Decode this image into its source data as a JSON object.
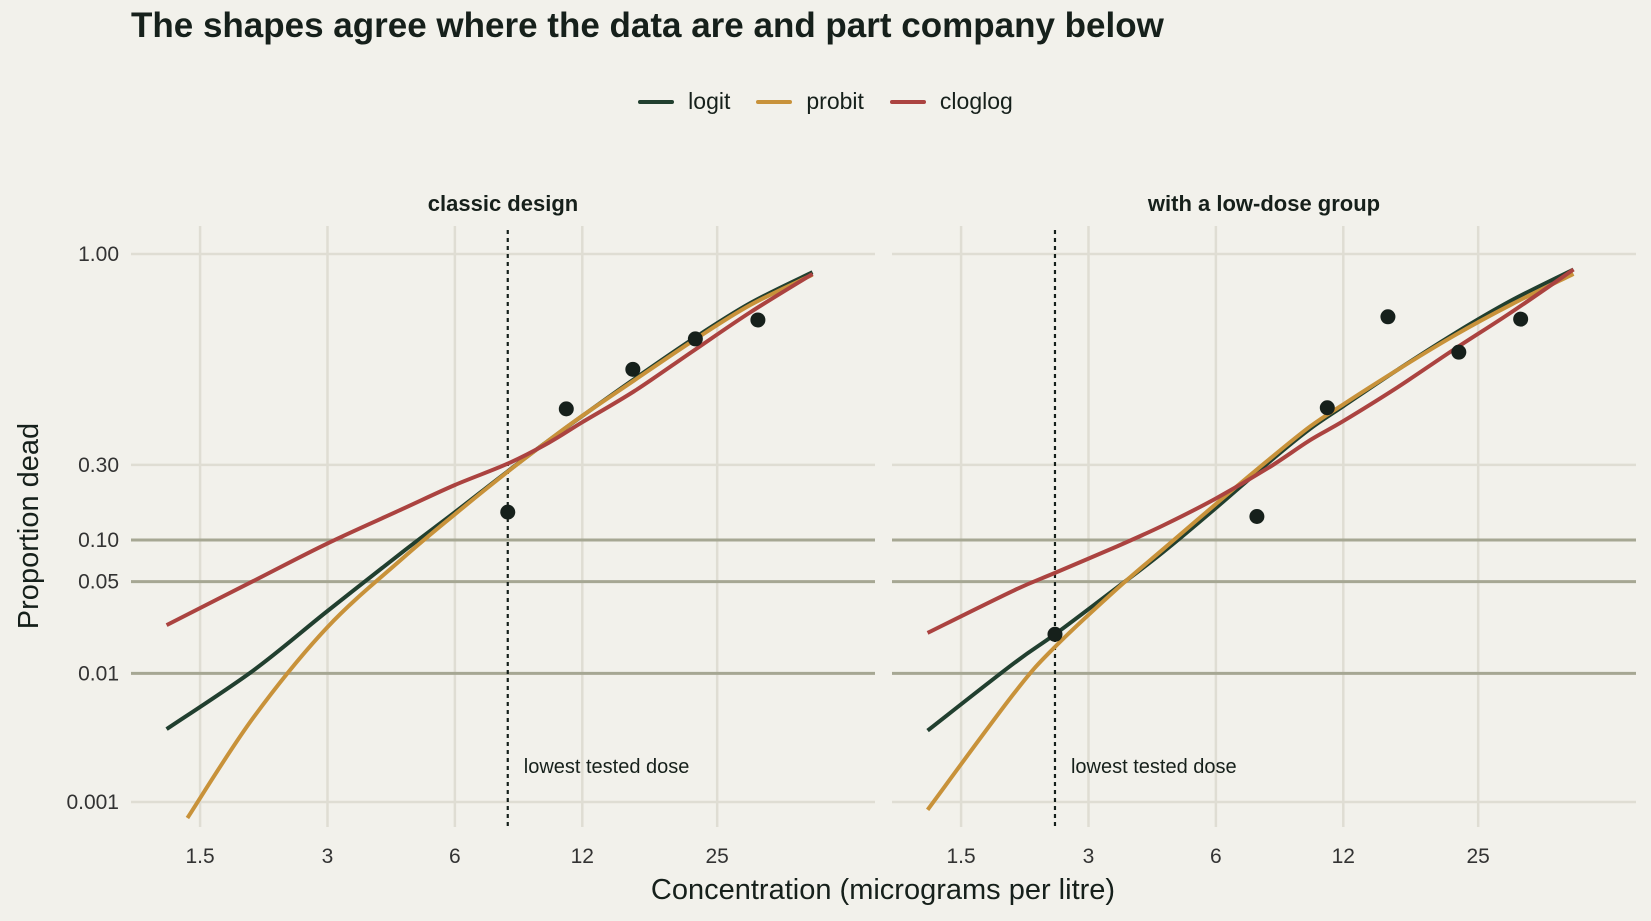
{
  "chart_data": {
    "type": "line",
    "title": "The shapes agree where the data are and part company below",
    "xlabel": "Concentration (micrograms per litre)",
    "ylabel": "Proportion dead",
    "x_scale": "log",
    "y_scale": "logit",
    "x_ticks": [
      1.5,
      3,
      6,
      12,
      25
    ],
    "x_tick_labels": [
      "1.5",
      "3",
      "6",
      "12",
      "25"
    ],
    "y_ticks": [
      0.001,
      0.01,
      0.05,
      0.1,
      0.3,
      1.0
    ],
    "y_tick_labels": [
      "0.001",
      "0.01",
      "0.05",
      "0.10",
      "0.30",
      "1.00"
    ],
    "highlight_y": [
      0.01,
      0.05,
      0.1
    ],
    "xlim": [
      1.03,
      59
    ],
    "legend_position": "top",
    "legend": [
      {
        "name": "logit",
        "color": "#213f2f"
      },
      {
        "name": "probit",
        "color": "#c8923a"
      },
      {
        "name": "cloglog",
        "color": "#ab4340"
      }
    ],
    "panels": [
      {
        "title": "classic design",
        "points": [
          {
            "x": 8.0,
            "y": 0.155
          },
          {
            "x": 11.0,
            "y": 0.54
          },
          {
            "x": 15.8,
            "y": 0.705
          },
          {
            "x": 22.2,
            "y": 0.805
          },
          {
            "x": 31.2,
            "y": 0.853
          }
        ],
        "lowest_dose": 8.0,
        "annotation": "lowest tested dose",
        "series": [
          {
            "name": "logit",
            "x": [
              1.25,
              2,
              3,
              4.5,
              6,
              8,
              10,
              12,
              16,
              22,
              30,
              42
            ],
            "y": [
              0.0037,
              0.0105,
              0.0301,
              0.0817,
              0.1549,
              0.2766,
              0.4,
              0.5086,
              0.67,
              0.8065,
              0.8875,
              0.932
            ]
          },
          {
            "name": "probit",
            "x": [
              1.4,
              2,
              3,
              4.5,
              6,
              8,
              10,
              12,
              16,
              22,
              30,
              42
            ],
            "y": [
              0.00075,
              0.0045,
              0.0227,
              0.0733,
              0.15,
              0.275,
              0.4,
              0.509,
              0.665,
              0.801,
              0.884,
              0.929
            ]
          },
          {
            "name": "cloglog",
            "x": [
              1.25,
              2,
              3,
              4.5,
              6,
              8,
              10,
              12,
              16,
              22,
              30,
              42
            ],
            "y": [
              0.0235,
              0.0503,
              0.0946,
              0.162,
              0.23,
              0.305,
              0.39,
              0.48,
              0.62,
              0.77,
              0.87,
              0.93
            ]
          }
        ]
      },
      {
        "title": "with a low-dose group",
        "points": [
          {
            "x": 2.5,
            "y": 0.02
          },
          {
            "x": 7.5,
            "y": 0.145
          },
          {
            "x": 11.0,
            "y": 0.545
          },
          {
            "x": 15.3,
            "y": 0.86
          },
          {
            "x": 22.5,
            "y": 0.765
          },
          {
            "x": 31.5,
            "y": 0.855
          }
        ],
        "lowest_dose": 2.5,
        "annotation": "lowest tested dose",
        "series": [
          {
            "name": "logit",
            "x": [
              1.25,
              2,
              2.5,
              3.5,
              4.5,
              6,
              8,
              10,
              12,
              16,
              22,
              30,
              42
            ],
            "y": [
              0.0036,
              0.012,
              0.02,
              0.045,
              0.082,
              0.165,
              0.31,
              0.45,
              0.552,
              0.7,
              0.82,
              0.892,
              0.935
            ]
          },
          {
            "name": "probit",
            "x": [
              1.25,
              2,
              2.5,
              3.5,
              4.5,
              6,
              8,
              10,
              12,
              16,
              22,
              30,
              42
            ],
            "y": [
              0.00087,
              0.007,
              0.016,
              0.044,
              0.086,
              0.175,
              0.32,
              0.46,
              0.56,
              0.7,
              0.815,
              0.885,
              0.93
            ]
          },
          {
            "name": "cloglog",
            "x": [
              1.25,
              2,
              2.5,
              3.5,
              4.5,
              6,
              8,
              10,
              12,
              16,
              22,
              30,
              42
            ],
            "y": [
              0.0205,
              0.043,
              0.058,
              0.09,
              0.126,
              0.19,
              0.29,
              0.4,
              0.485,
              0.63,
              0.775,
              0.87,
              0.935
            ]
          }
        ]
      }
    ]
  }
}
